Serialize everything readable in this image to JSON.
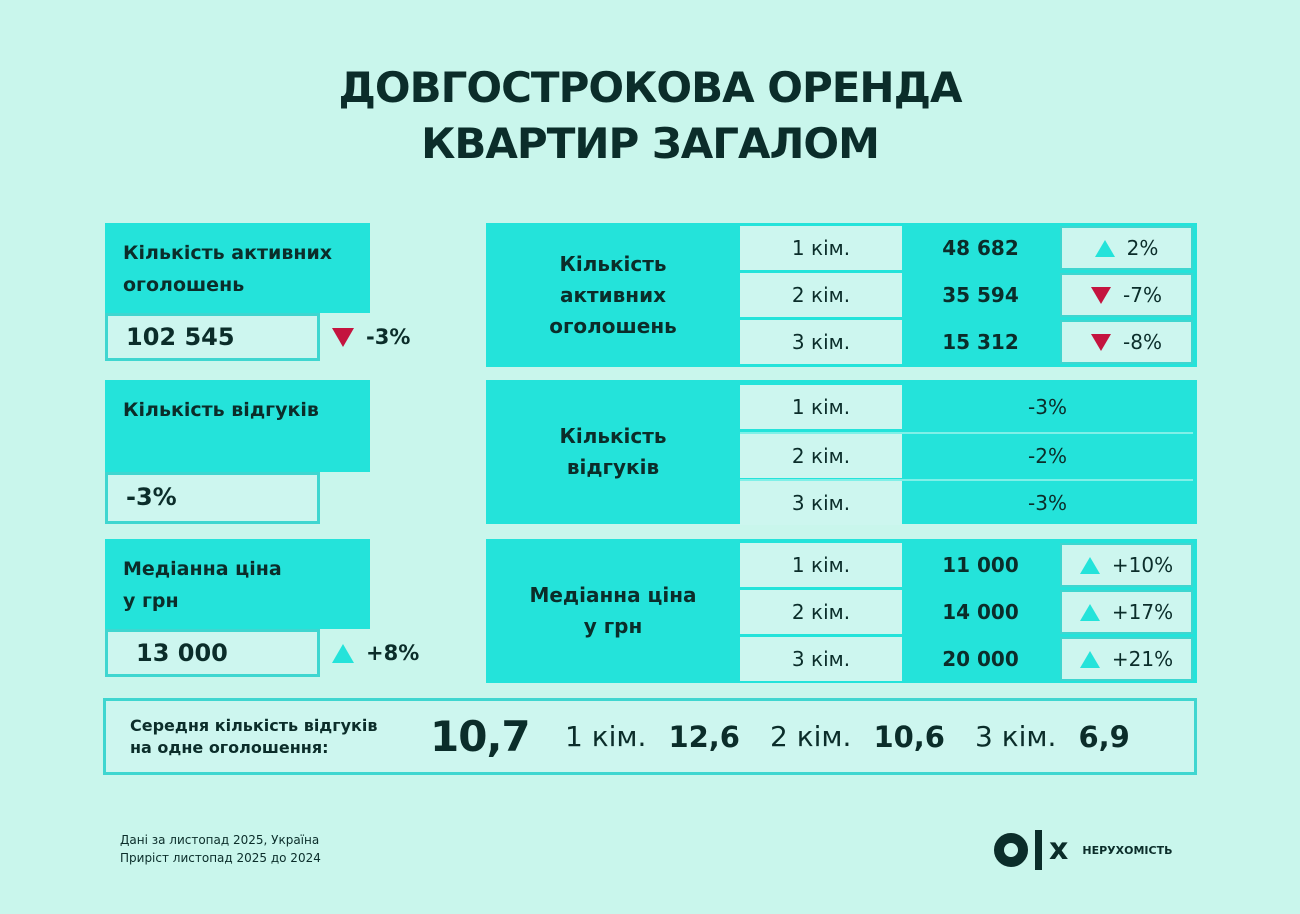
{
  "title": {
    "line1": "ДОВГОСТРОКОВА ОРЕНДА",
    "line2": "КВАРТИР ЗАГАЛОМ"
  },
  "colors": {
    "accent": "#24e3da",
    "background": "#c9f6ec",
    "down": "#c4143f",
    "text": "#0b2d2a"
  },
  "left": {
    "listings": {
      "label_line1": "Кількість активних",
      "label_line2": "оголошень",
      "value": "102 545",
      "change": "-3%",
      "trend": "down"
    },
    "responses": {
      "label": "Кількість відгуків",
      "value": "-3%"
    },
    "price": {
      "label_line1": "Медіанна ціна",
      "label_line2": "у грн",
      "value": "13 000",
      "change": "+8%",
      "trend": "up"
    }
  },
  "right": {
    "listings": {
      "label_line1": "Кількість",
      "label_line2": "активних",
      "label_line3": "оголошень",
      "rows": [
        {
          "room": "1 кім.",
          "value": "48 682",
          "change": "2%",
          "trend": "up"
        },
        {
          "room": "2 кім.",
          "value": "35 594",
          "change": "-7%",
          "trend": "down"
        },
        {
          "room": "3 кім.",
          "value": "15 312",
          "change": "-8%",
          "trend": "down"
        }
      ]
    },
    "responses": {
      "label_line1": "Кількість",
      "label_line2": "відгуків",
      "rows": [
        {
          "room": "1 кім.",
          "change": "-3%"
        },
        {
          "room": "2 кім.",
          "change": "-2%"
        },
        {
          "room": "3 кім.",
          "change": "-3%"
        }
      ]
    },
    "price": {
      "label_line1": "Медіанна ціна",
      "label_line2": "у грн",
      "rows": [
        {
          "room": "1 кім.",
          "value": "11 000",
          "change": "+10%",
          "trend": "up"
        },
        {
          "room": "2 кім.",
          "value": "14 000",
          "change": "+17%",
          "trend": "up"
        },
        {
          "room": "3 кім.",
          "value": "20 000",
          "change": "+21%",
          "trend": "up"
        }
      ]
    }
  },
  "average": {
    "label_line1": "Середня кількість відгуків",
    "label_line2": "на одне оголошення:",
    "overall": "10,7",
    "items": [
      {
        "room": "1 кім.",
        "value": "12,6"
      },
      {
        "room": "2 кім.",
        "value": "10,6"
      },
      {
        "room": "3 кім.",
        "value": "6,9"
      }
    ]
  },
  "footer": {
    "line1": "Дані за листопад 2025, Україна",
    "line2": "Приріст листопад 2025 до 2024"
  },
  "logo": {
    "mark": "OLX",
    "x": "x",
    "brand": "НЕРУХОМІСТЬ",
    "icon": "olx-logo-icon"
  }
}
